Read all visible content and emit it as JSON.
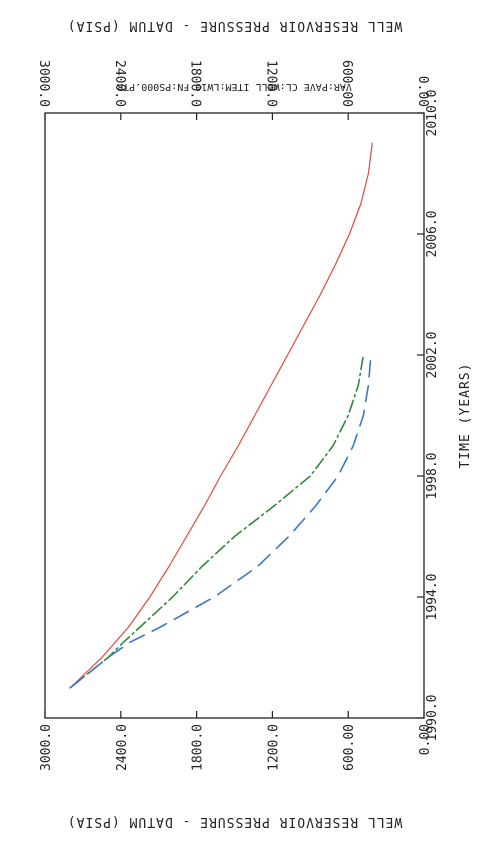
{
  "chart_data": {
    "type": "line",
    "orientation": "rotated-90-clockwise",
    "x_axis": {
      "label": "TIME (YEARS)",
      "range": [
        1990,
        2010
      ],
      "ticks": [
        "1990.0",
        "1994.0",
        "1998.0",
        "2002.0",
        "2006.0",
        "2010.0"
      ]
    },
    "y_axis_left": {
      "label": "WELL RESERVOIR PRESSURE - DATUM (PSIA)",
      "range": [
        0,
        3000
      ],
      "ticks": [
        "0.00",
        "600.00",
        "1200.0",
        "1800.0",
        "2400.0",
        "3000.0"
      ]
    },
    "y_axis_right": {
      "label": "WELL RESERVOIR PRESSURE - DATUM (PSIA)",
      "range": [
        0,
        3000
      ],
      "ticks": [
        "0.00",
        "600.00",
        "1200.0",
        "1800.0",
        "2400.0",
        "3000.0"
      ]
    },
    "legend": {
      "items": [
        "VAR:PAVE",
        "CL:WELL",
        "ITEM:LW10",
        "FN:PS000.PTR"
      ]
    },
    "series": [
      {
        "style": "solid",
        "color": "#e04a3a",
        "x": [
          1991.0,
          1992.0,
          1993.0,
          1994.0,
          1995.0,
          1996.0,
          1997.0,
          1998.0,
          1999.0,
          2000.0,
          2001.0,
          2002.0,
          2003.0,
          2004.0,
          2005.0,
          2006.0,
          2007.0,
          2008.0,
          2009.0
        ],
        "y": [
          2800,
          2550,
          2340,
          2170,
          2020,
          1880,
          1740,
          1610,
          1470,
          1340,
          1210,
          1080,
          950,
          820,
          700,
          590,
          500,
          440,
          410
        ]
      },
      {
        "style": "dashed",
        "color": "#2e8a3a",
        "x": [
          1991.0,
          1992.0,
          1992.5,
          1993.0,
          1994.0,
          1995.0,
          1996.0,
          1997.0,
          1998.0,
          1999.0,
          2000.0,
          2001.0,
          2002.0
        ],
        "y": [
          2800,
          2500,
          2380,
          2250,
          1990,
          1760,
          1500,
          1190,
          900,
          720,
          600,
          520,
          480
        ]
      },
      {
        "style": "dashed",
        "color": "#3a78c8",
        "x": [
          1991.0,
          1992.0,
          1992.5,
          1993.0,
          1994.0,
          1995.0,
          1996.0,
          1997.0,
          1998.0,
          1999.0,
          2000.0,
          2001.0,
          2002.0
        ],
        "y": [
          2800,
          2500,
          2330,
          2090,
          1660,
          1320,
          1070,
          860,
          680,
          560,
          480,
          440,
          420
        ]
      }
    ]
  }
}
